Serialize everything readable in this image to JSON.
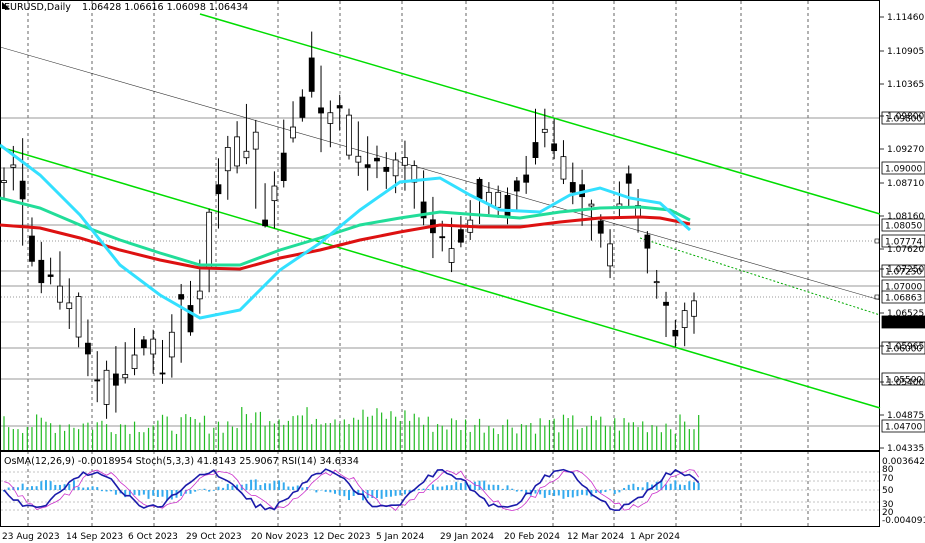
{
  "header": {
    "symbol": "EURUSD,Daily",
    "ohlc": "1.06428 1.06616 1.06098 1.06434"
  },
  "indicator_header": {
    "text": "OsMA(12,26,9) -0.0018954  Stoch(5,3,3) 41.8143 25.9067  RSI(14) 34.6334"
  },
  "colors": {
    "channel_line": "#00dd00",
    "ma_fast": "#33e0ff",
    "ma_mid": "#22dd99",
    "ma_slow": "#dd1111",
    "candles": "#000000",
    "volume": "#22bb22",
    "osma_hist": "#33aaee",
    "stoch_main": "#1a1aaa",
    "stoch_signal": "#cc33cc"
  },
  "chart_data": {
    "type": "candlestick",
    "title": "EURUSD,Daily",
    "ylim": [
      1.0432,
      1.1154
    ],
    "y_ticks": [
      "1.11460",
      "1.10905",
      "1.10365",
      "1.09800",
      "1.09270",
      "1.08710",
      "1.08160",
      "1.07620",
      "1.07250",
      "1.06525",
      "1.05965",
      "1.05400",
      "1.04875",
      "1.04335"
    ],
    "levels": [
      {
        "value": 1.098,
        "label": "1.09800",
        "style": "solid-gray"
      },
      {
        "value": 1.09,
        "label": "1.09000",
        "style": "solid-gray"
      },
      {
        "value": 1.0805,
        "label": "1.08050",
        "style": "solid-gray"
      },
      {
        "value": 1.07774,
        "label": "1.07774",
        "style": "dotted-gray"
      },
      {
        "value": 1.0725,
        "label": "1.07250",
        "style": "solid-gray"
      },
      {
        "value": 1.07,
        "label": "1.07000",
        "style": "solid-gray"
      },
      {
        "value": 1.06863,
        "label": "1.06863",
        "style": "dotted-gray"
      },
      {
        "value": 1.06434,
        "label": "1.06434",
        "style": "current"
      },
      {
        "value": 1.06,
        "label": "1.06000",
        "style": "solid-gray"
      },
      {
        "value": 1.055,
        "label": "1.05500",
        "style": "solid-gray"
      },
      {
        "value": 1.047,
        "label": "1.04700",
        "style": "solid-gray"
      }
    ],
    "x_labels": [
      "23 Aug 2023",
      "14 Sep 2023",
      "6 Oct 2023",
      "29 Oct 2023",
      "20 Nov 2023",
      "12 Dec 2023",
      "5 Jan 2024",
      "29 Jan 2024",
      "20 Feb 2024",
      "12 Mar 2024",
      "1 Apr 2024"
    ],
    "close_path": [
      [
        1.084,
        1.0885
      ],
      [
        1.086,
        1.092
      ],
      [
        1.077,
        1.093
      ],
      [
        1.073,
        1.08
      ],
      [
        1.069,
        1.076
      ],
      [
        1.071,
        1.073
      ],
      [
        1.066,
        1.074
      ],
      [
        1.063,
        1.07
      ],
      [
        1.06,
        1.068
      ],
      [
        1.056,
        1.064
      ],
      [
        1.052,
        1.059
      ],
      [
        1.0485,
        1.057
      ],
      [
        1.05,
        1.059
      ],
      [
        1.054,
        1.06
      ],
      [
        1.056,
        1.062
      ],
      [
        1.059,
        1.061
      ],
      [
        1.056,
        1.062
      ],
      [
        1.054,
        1.06
      ],
      [
        1.056,
        1.064
      ],
      [
        1.058,
        1.069
      ],
      [
        1.062,
        1.07
      ],
      [
        1.066,
        1.073
      ],
      [
        1.069,
        1.082
      ],
      [
        1.08,
        1.09
      ],
      [
        1.084,
        1.093
      ],
      [
        1.088,
        1.095
      ],
      [
        1.09,
        1.098
      ],
      [
        1.083,
        1.096
      ],
      [
        1.079,
        1.086
      ],
      [
        1.079,
        1.087
      ],
      [
        1.086,
        1.096
      ],
      [
        1.093,
        1.099
      ],
      [
        1.096,
        1.101
      ],
      [
        1.1,
        1.11
      ],
      [
        1.092,
        1.105
      ],
      [
        1.093,
        1.099
      ],
      [
        1.095,
        1.1
      ],
      [
        1.09,
        1.098
      ],
      [
        1.088,
        1.096
      ],
      [
        1.086,
        1.093
      ],
      [
        1.088,
        1.092
      ],
      [
        1.086,
        1.09
      ],
      [
        1.085,
        1.09
      ],
      [
        1.086,
        1.092
      ],
      [
        1.083,
        1.089
      ],
      [
        1.08,
        1.087
      ],
      [
        1.075,
        1.083
      ],
      [
        1.076,
        1.079
      ],
      [
        1.073,
        1.08
      ],
      [
        1.076,
        1.08
      ],
      [
        1.077,
        1.083
      ],
      [
        1.08,
        1.087
      ],
      [
        1.082,
        1.086
      ],
      [
        1.081,
        1.085
      ],
      [
        1.08,
        1.085
      ],
      [
        1.082,
        1.087
      ],
      [
        1.085,
        1.09
      ],
      [
        1.09,
        1.098
      ],
      [
        1.092,
        1.097
      ],
      [
        1.09,
        1.096
      ],
      [
        1.086,
        1.092
      ],
      [
        1.083,
        1.089
      ],
      [
        1.08,
        1.088
      ],
      [
        1.078,
        1.083
      ],
      [
        1.076,
        1.081
      ],
      [
        1.072,
        1.078
      ],
      [
        1.081,
        1.086
      ],
      [
        1.083,
        1.088
      ],
      [
        1.079,
        1.085
      ],
      [
        1.072,
        1.078
      ],
      [
        1.068,
        1.072
      ],
      [
        1.062,
        1.068
      ],
      [
        1.06,
        1.064
      ],
      [
        1.061,
        1.066
      ],
      [
        1.062,
        1.068
      ]
    ]
  },
  "indicator_data": {
    "ylim_labels": [
      "0.0036423",
      "80",
      "70",
      "50",
      "30",
      "20",
      "-0.004091"
    ],
    "levels": [
      80,
      70,
      50,
      30,
      20
    ]
  }
}
